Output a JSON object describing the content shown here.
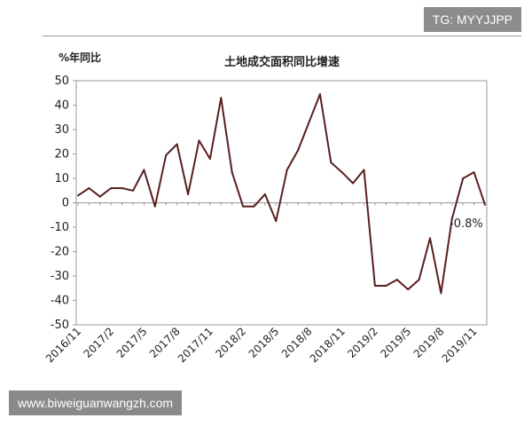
{
  "header": {
    "watermark": "TG: MYYJJPP"
  },
  "footer": {
    "watermark": "www.biweiguanwangzh.com"
  },
  "chart_data": {
    "type": "line",
    "title": "土地成交面积同比增速",
    "ylabel": "%年同比",
    "xlabel": "",
    "ylim": [
      -50,
      50
    ],
    "y_ticks": [
      50,
      40,
      30,
      20,
      10,
      0,
      -10,
      -20,
      -30,
      -40,
      -50
    ],
    "grid": false,
    "x_tick_labels": [
      "2016/11",
      "2017/2",
      "2017/5",
      "2017/8",
      "2017/11",
      "2018/2",
      "2018/5",
      "2018/8",
      "2018/11",
      "2019/2",
      "2019/5",
      "2019/8",
      "2019/11"
    ],
    "x_tick_every": 3,
    "series": [
      {
        "name": "",
        "color": "#5a1e1e",
        "values": [
          3,
          6,
          2.5,
          6,
          6,
          5,
          13.5,
          -1.5,
          19.5,
          24,
          3.5,
          25.5,
          18,
          43,
          12.5,
          -1.5,
          -1.5,
          3.5,
          -7.5,
          13.5,
          21.5,
          33,
          44.5,
          16.5,
          12.5,
          8,
          13.5,
          -34,
          -34,
          -31.5,
          -35.5,
          -31.5,
          -14.5,
          -37,
          -6.5,
          10,
          12.5,
          -0.8
        ]
      }
    ],
    "annotations": [
      {
        "text": "-0.8%"
      }
    ]
  }
}
